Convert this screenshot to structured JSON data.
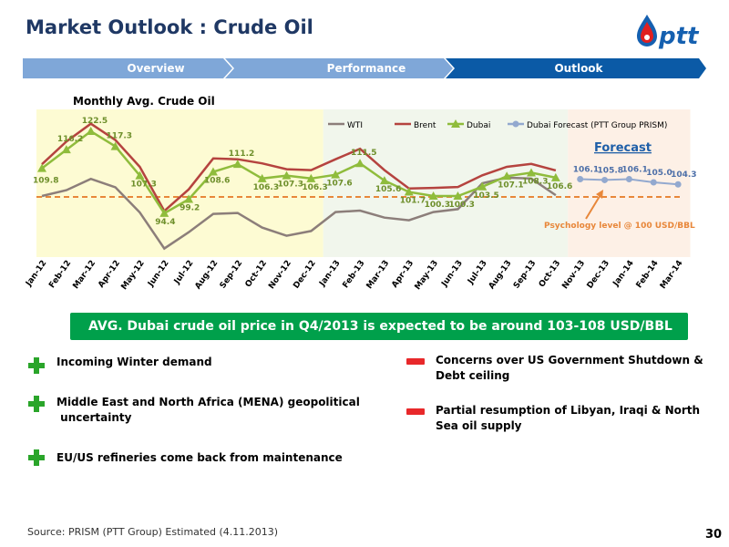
{
  "header": {
    "title": "Market Outlook : Crude Oil",
    "logo_text": "ptt"
  },
  "tabs": [
    {
      "label": "Overview",
      "active": false
    },
    {
      "label": "Performance",
      "active": false
    },
    {
      "label": "Outlook",
      "active": true
    }
  ],
  "colors": {
    "title": "#1f3864",
    "tab_inactive": "#7fa7d8",
    "tab_active": "#0b5aa6",
    "wti": "#8c7e7a",
    "brent": "#b5433f",
    "dubai": "#8fbc3c",
    "forecast": "#93a9cf",
    "psych_line": "#e8873a",
    "band_yellow": "#fdfbd3",
    "band_green": "#f1f6ec",
    "band_peach": "#fdf0e6",
    "banner": "#00a04b"
  },
  "chart_data": {
    "type": "line",
    "title": "Monthly Avg.  Crude Oil",
    "categories": [
      "Jan-12",
      "Feb-12",
      "Mar-12",
      "Apr-12",
      "May-12",
      "Jun-12",
      "Jul-12",
      "Aug-12",
      "Sep-12",
      "Oct-12",
      "Nov-12",
      "Dec-12",
      "Jan-13",
      "Feb-13",
      "Mar-13",
      "Apr-13",
      "May-13",
      "Jun-13",
      "Jul-13",
      "Aug-13",
      "Sep-13",
      "Oct-13",
      "Nov-13",
      "Dec-13",
      "Jan-14",
      "Feb-14",
      "Mar-14"
    ],
    "ylim": [
      80,
      130
    ],
    "series": [
      {
        "name": "WTI",
        "values": [
          100.3,
          102.3,
          106.2,
          103.3,
          94.7,
          82.3,
          87.9,
          94.2,
          94.5,
          89.5,
          86.7,
          88.3,
          94.8,
          95.3,
          92.9,
          92.0,
          94.8,
          95.8,
          104.7,
          106.6,
          106.3,
          100.6,
          null,
          null,
          null,
          null,
          null
        ]
      },
      {
        "name": "Brent",
        "values": [
          111.2,
          119.0,
          125.1,
          119.5,
          110.3,
          95.2,
          102.6,
          113.2,
          112.9,
          111.5,
          109.5,
          109.2,
          112.9,
          116.5,
          109.2,
          102.9,
          103.1,
          103.4,
          107.4,
          110.3,
          111.3,
          109.1,
          null,
          null,
          null,
          null,
          null
        ]
      },
      {
        "name": "Dubai",
        "values": [
          109.8,
          116.2,
          122.5,
          117.3,
          107.3,
          94.4,
          99.2,
          108.6,
          111.2,
          106.3,
          107.3,
          106.3,
          107.6,
          111.5,
          105.6,
          101.7,
          100.3,
          100.3,
          103.5,
          107.1,
          108.3,
          106.6,
          null,
          null,
          null,
          null,
          null
        ]
      },
      {
        "name": "Dubai Forecast (PTT Group PRISM)",
        "values": [
          null,
          null,
          null,
          null,
          null,
          null,
          null,
          null,
          null,
          null,
          null,
          null,
          null,
          null,
          null,
          null,
          null,
          null,
          null,
          null,
          null,
          null,
          106.1,
          105.8,
          106.1,
          105.0,
          104.3
        ]
      }
    ],
    "dubai_labels": [
      "109.8",
      "116.2",
      "122.5",
      "117.3",
      "107.3",
      "94.4",
      "99.2",
      "108.6",
      "111.2",
      "106.3",
      "107.3",
      "106.3",
      "107.6",
      "111.5",
      "105.6",
      "101.7",
      "100.3",
      "100.3",
      "103.5",
      "107.1",
      "108.3",
      "106.6"
    ],
    "forecast_labels": [
      "106.1",
      "105.8",
      "106.1",
      "105.0",
      "104.3"
    ],
    "forecast_label": "Forecast",
    "psychology_level": 100,
    "psychology_label": "Psychology level  @ 100 USD/BBL",
    "legend_position": "top-right"
  },
  "banner": {
    "text": "AVG. Dubai crude oil price in Q4/2013 is expected to be around 103-108 USD/BBL"
  },
  "positive_drivers": [
    {
      "line1": "Incoming Winter demand",
      "line2": ""
    },
    {
      "line1": "Middle East and North Africa (MENA) geopolitical",
      "line2": " uncertainty"
    },
    {
      "line1": "EU/US refineries come back from maintenance",
      "line2": ""
    }
  ],
  "negative_drivers": [
    {
      "line1": "Concerns over US Government Shutdown &",
      "line2": "Debt ceiling"
    },
    {
      "line1": "Partial resumption of Libyan, Iraqi & North",
      "line2": "Sea oil supply"
    }
  ],
  "footer": {
    "source": "Source: PRISM (PTT Group) Estimated (4.11.2013)",
    "page_number": "30"
  }
}
